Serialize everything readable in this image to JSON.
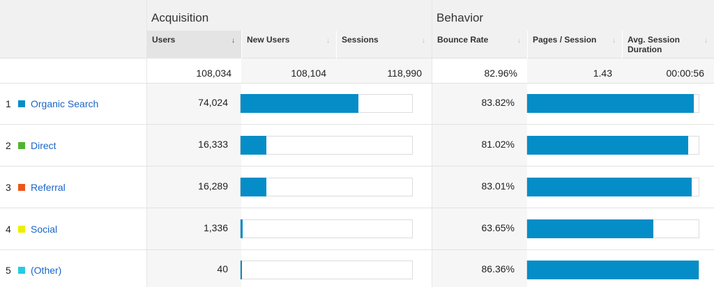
{
  "groups": {
    "acquisition": "Acquisition",
    "behavior": "Behavior"
  },
  "columns": {
    "users": "Users",
    "new_users": "New Users",
    "sessions": "Sessions",
    "bounce_rate": "Bounce Rate",
    "pages_session": "Pages / Session",
    "avg_duration": "Avg. Session Duration"
  },
  "sort_icon": "↓",
  "totals": {
    "users": "108,034",
    "new_users": "108,104",
    "sessions": "118,990",
    "bounce_rate": "82.96%",
    "pages_session": "1.43",
    "avg_duration": "00:00:56"
  },
  "rows": [
    {
      "num": "1",
      "label": "Organic Search",
      "color": "#058dc7",
      "users": "74,024",
      "users_bar": 0.685,
      "bounce_rate": "83.82%",
      "bounce_bar": 0.97
    },
    {
      "num": "2",
      "label": "Direct",
      "color": "#50b432",
      "users": "16,333",
      "users_bar": 0.151,
      "bounce_rate": "81.02%",
      "bounce_bar": 0.938
    },
    {
      "num": "3",
      "label": "Referral",
      "color": "#ed561b",
      "users": "16,289",
      "users_bar": 0.151,
      "bounce_rate": "83.01%",
      "bounce_bar": 0.961
    },
    {
      "num": "4",
      "label": "Social",
      "color": "#edef00",
      "users": "1,336",
      "users_bar": 0.012,
      "bounce_rate": "63.65%",
      "bounce_bar": 0.737
    },
    {
      "num": "5",
      "label": "(Other)",
      "color": "#24cbe5",
      "users": "40",
      "users_bar": 0.002,
      "bounce_rate": "86.36%",
      "bounce_bar": 1.0
    }
  ]
}
